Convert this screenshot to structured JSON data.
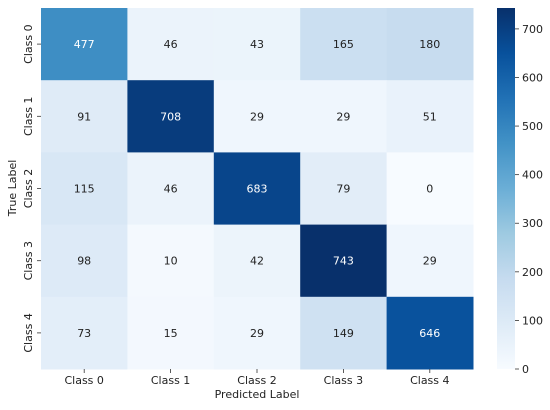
{
  "chart_data": {
    "type": "heatmap",
    "title": "",
    "xlabel": "Predicted Label",
    "ylabel": "True Label",
    "x_categories": [
      "Class 0",
      "Class 1",
      "Class 2",
      "Class 3",
      "Class 4"
    ],
    "y_categories": [
      "Class 0",
      "Class 1",
      "Class 2",
      "Class 3",
      "Class 4"
    ],
    "values": [
      [
        477,
        46,
        43,
        165,
        180
      ],
      [
        91,
        708,
        29,
        29,
        51
      ],
      [
        115,
        46,
        683,
        79,
        0
      ],
      [
        98,
        10,
        42,
        743,
        29
      ],
      [
        73,
        15,
        29,
        149,
        646
      ]
    ],
    "colorbar": {
      "colormap": "Blues",
      "range": [
        0,
        743
      ],
      "ticks": [
        0,
        100,
        200,
        300,
        400,
        500,
        600,
        700
      ]
    },
    "grid": false,
    "legend": "colorbar-right"
  }
}
